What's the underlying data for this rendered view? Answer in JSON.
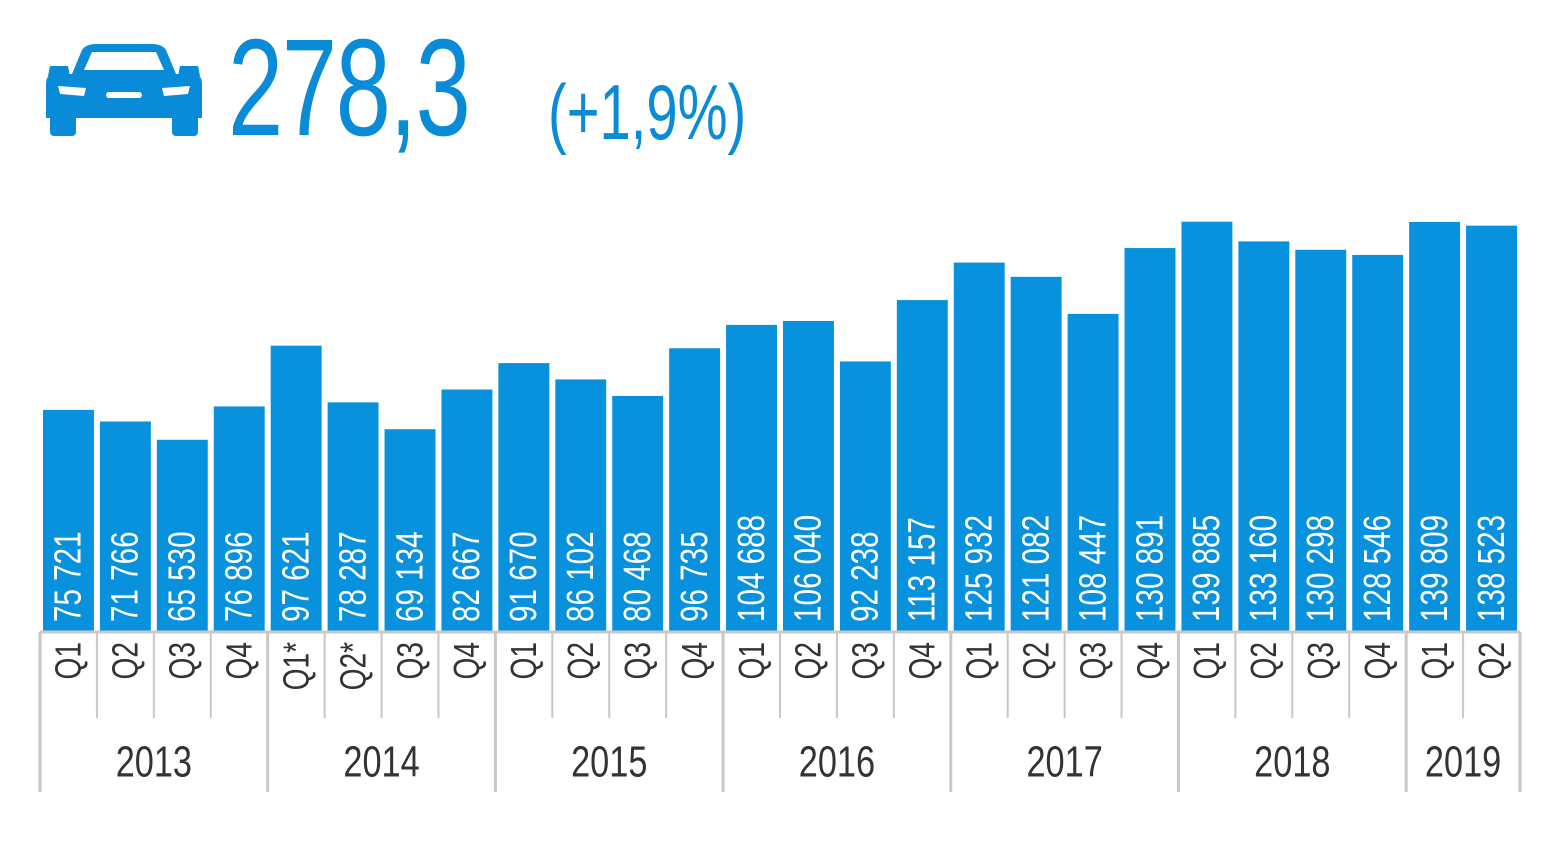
{
  "headline": {
    "icon": "car-icon",
    "value": "278,3",
    "change": "(+1,9%)"
  },
  "colors": {
    "accent": "#0a8bd8",
    "bar": "#0891dc",
    "axis": "#c8c8c8",
    "label_text": "#333333",
    "bar_label_text": "#ffffff"
  },
  "chart_data": {
    "type": "bar",
    "title": "",
    "xlabel": "",
    "ylabel": "",
    "ylim": [
      0,
      150000
    ],
    "grid": false,
    "categories": [
      "Q1",
      "Q2",
      "Q3",
      "Q4",
      "Q1*",
      "Q2*",
      "Q3",
      "Q4",
      "Q1",
      "Q2",
      "Q3",
      "Q4",
      "Q1",
      "Q2",
      "Q3",
      "Q4",
      "Q1",
      "Q2",
      "Q3",
      "Q4",
      "Q1",
      "Q2",
      "Q3",
      "Q4",
      "Q1",
      "Q2"
    ],
    "values": [
      75721,
      71766,
      65530,
      76896,
      97621,
      78287,
      69134,
      82667,
      91670,
      86102,
      80468,
      96735,
      104688,
      106040,
      92238,
      113157,
      125932,
      121082,
      108447,
      130891,
      139885,
      133160,
      130298,
      128546,
      139809,
      138523
    ],
    "value_labels": [
      "75 721",
      "71 766",
      "65 530",
      "76 896",
      "97 621",
      "78 287",
      "69 134",
      "82 667",
      "91 670",
      "86 102",
      "80 468",
      "96 735",
      "104 688",
      "106 040",
      "92 238",
      "113 157",
      "125 932",
      "121 082",
      "108 447",
      "130 891",
      "139 885",
      "133 160",
      "130 298",
      "128 546",
      "139 809",
      "138 523"
    ],
    "groups": [
      {
        "label": "2013",
        "count": 4
      },
      {
        "label": "2014",
        "count": 4
      },
      {
        "label": "2015",
        "count": 4
      },
      {
        "label": "2016",
        "count": 4
      },
      {
        "label": "2017",
        "count": 4
      },
      {
        "label": "2018",
        "count": 4
      },
      {
        "label": "2019",
        "count": 2
      }
    ]
  }
}
